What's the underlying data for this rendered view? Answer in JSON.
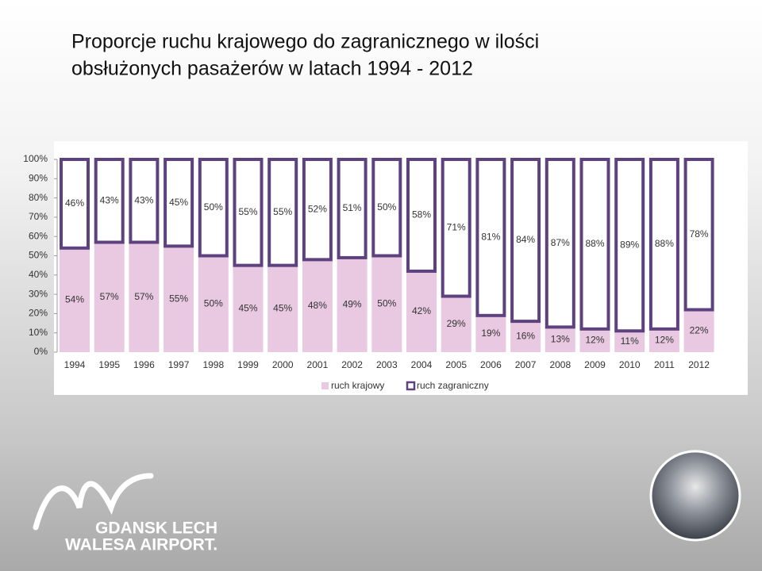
{
  "chart_data": {
    "type": "stacked_bar",
    "title": [
      "Proporcje ruchu krajowego do zagranicznego w ilości",
      "obsłużonych pasażerów w latach 1994 - 2012"
    ],
    "categories": [
      "1994",
      "1995",
      "1996",
      "1997",
      "1998",
      "1999",
      "2000",
      "2001",
      "2002",
      "2003",
      "2004",
      "2005",
      "2006",
      "2007",
      "2008",
      "2009",
      "2010",
      "2011",
      "2012"
    ],
    "series": [
      {
        "name": "ruch krajowy",
        "color": "#e9c9e1",
        "values": [
          54,
          57,
          57,
          55,
          50,
          45,
          45,
          48,
          49,
          50,
          42,
          29,
          19,
          16,
          13,
          12,
          11,
          12,
          22
        ],
        "value_labels": [
          "54%",
          "57%",
          "57%",
          "55%",
          "50%",
          "45%",
          "45%",
          "48%",
          "49%",
          "50%",
          "42%",
          "29%",
          "19%",
          "16%",
          "13%",
          "12%",
          "11%",
          "12%",
          "22%"
        ]
      },
      {
        "name": "ruch zagraniczny",
        "color": "#5e4280",
        "values": [
          46,
          43,
          43,
          45,
          50,
          55,
          55,
          52,
          51,
          50,
          58,
          71,
          81,
          84,
          87,
          88,
          89,
          88,
          78
        ],
        "value_labels": [
          "46%",
          "43%",
          "43%",
          "45%",
          "50%",
          "55%",
          "55%",
          "52%",
          "51%",
          "50%",
          "58%",
          "71%",
          "81%",
          "84%",
          "87%",
          "88%",
          "89%",
          "88%",
          "78%"
        ]
      }
    ],
    "ylim": [
      0,
      100
    ],
    "yticks": [
      {
        "value": 0,
        "label": "0%"
      },
      {
        "value": 10,
        "label": "10%"
      },
      {
        "value": 20,
        "label": "20%"
      },
      {
        "value": 30,
        "label": "30%"
      },
      {
        "value": 40,
        "label": "40%"
      },
      {
        "value": 50,
        "label": "50%"
      },
      {
        "value": 60,
        "label": "60%"
      },
      {
        "value": 70,
        "label": "70%"
      },
      {
        "value": 80,
        "label": "80%"
      },
      {
        "value": 90,
        "label": "90%"
      },
      {
        "value": 100,
        "label": "100%"
      }
    ],
    "legend": "bottom"
  },
  "logo": {
    "lines": [
      "GDANSK LECH",
      "WALESA AIRPORT."
    ]
  }
}
